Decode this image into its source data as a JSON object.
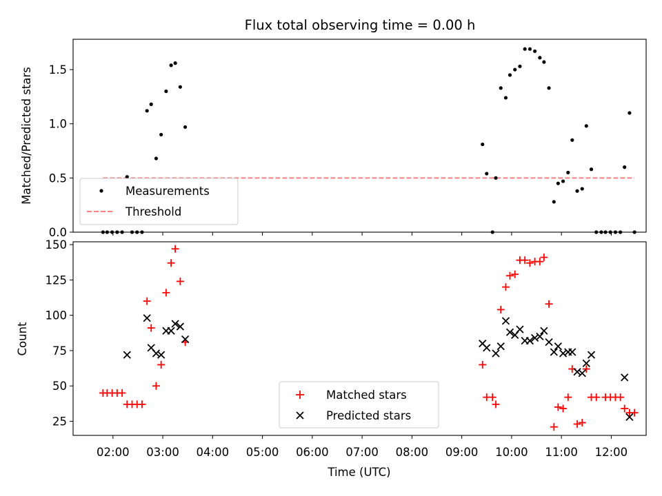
{
  "chart_data": [
    {
      "type": "scatter",
      "title": "Flux total observing time = 0.00 h",
      "xlabel": "",
      "ylabel": "Matched/Predicted stars",
      "xlim": [
        "01:12",
        "12:42"
      ],
      "ylim": [
        0,
        1.78
      ],
      "yticks": [
        0.0,
        0.5,
        1.0,
        1.5
      ],
      "ytick_labels": [
        "0.0",
        "0.5",
        "1.0",
        "1.5"
      ],
      "legend": {
        "position": "lower-left",
        "entries": [
          "Measurements",
          "Threshold"
        ]
      },
      "series": [
        {
          "name": "Measurements",
          "marker": "dot",
          "color": "#000000",
          "points": [
            [
              "01:48",
              0.0
            ],
            [
              "01:53",
              0.0
            ],
            [
              "01:59",
              0.0
            ],
            [
              "02:05",
              0.0
            ],
            [
              "02:11",
              0.0
            ],
            [
              "02:17",
              0.51
            ],
            [
              "02:23",
              0.0
            ],
            [
              "02:29",
              0.0
            ],
            [
              "02:35",
              0.0
            ],
            [
              "02:41",
              1.12
            ],
            [
              "02:46",
              1.18
            ],
            [
              "02:52",
              0.68
            ],
            [
              "02:58",
              0.9
            ],
            [
              "03:04",
              1.3
            ],
            [
              "03:10",
              1.54
            ],
            [
              "03:15",
              1.56
            ],
            [
              "03:21",
              1.34
            ],
            [
              "03:27",
              0.97
            ],
            [
              "09:25",
              0.81
            ],
            [
              "09:30",
              0.54
            ],
            [
              "09:37",
              0.0
            ],
            [
              "09:41",
              0.5
            ],
            [
              "09:47",
              1.33
            ],
            [
              "09:53",
              1.24
            ],
            [
              "09:58",
              1.45
            ],
            [
              "10:04",
              1.5
            ],
            [
              "10:10",
              1.53
            ],
            [
              "10:16",
              1.69
            ],
            [
              "10:22",
              1.69
            ],
            [
              "10:28",
              1.67
            ],
            [
              "10:34",
              1.61
            ],
            [
              "10:39",
              1.57
            ],
            [
              "10:45",
              1.33
            ],
            [
              "10:51",
              0.28
            ],
            [
              "10:56",
              0.45
            ],
            [
              "11:02",
              0.47
            ],
            [
              "11:08",
              0.55
            ],
            [
              "11:13",
              0.85
            ],
            [
              "11:19",
              0.38
            ],
            [
              "11:25",
              0.4
            ],
            [
              "11:30",
              0.98
            ],
            [
              "11:36",
              0.58
            ],
            [
              "11:42",
              0.0
            ],
            [
              "11:48",
              0.0
            ],
            [
              "11:53",
              0.0
            ],
            [
              "11:59",
              0.0
            ],
            [
              "12:05",
              0.0
            ],
            [
              "12:11",
              0.0
            ],
            [
              "12:16",
              0.6
            ],
            [
              "12:22",
              1.1
            ],
            [
              "12:28",
              0.0
            ]
          ]
        },
        {
          "name": "Threshold",
          "style": "dashed",
          "color": "#ff8080",
          "x": [
            "01:48",
            "12:28"
          ],
          "y": [
            0.5,
            0.5
          ]
        }
      ]
    },
    {
      "type": "scatter",
      "title": "",
      "xlabel": "Time (UTC)",
      "ylabel": "Count",
      "xlim": [
        "01:12",
        "12:42"
      ],
      "ylim": [
        15,
        152
      ],
      "xticks": [
        "02:00",
        "03:00",
        "04:00",
        "05:00",
        "06:00",
        "07:00",
        "08:00",
        "09:00",
        "10:00",
        "11:00",
        "12:00"
      ],
      "yticks": [
        25,
        50,
        75,
        100,
        125,
        150
      ],
      "ytick_labels": [
        "25",
        "50",
        "75",
        "100",
        "125",
        "150"
      ],
      "legend": {
        "position": "lower-center",
        "entries": [
          "Matched stars",
          "Predicted stars"
        ]
      },
      "series": [
        {
          "name": "Matched stars",
          "marker": "plus",
          "color": "#ff0000",
          "points": [
            [
              "01:48",
              45
            ],
            [
              "01:53",
              45
            ],
            [
              "01:59",
              45
            ],
            [
              "02:05",
              45
            ],
            [
              "02:11",
              45
            ],
            [
              "02:17",
              37
            ],
            [
              "02:23",
              37
            ],
            [
              "02:29",
              37
            ],
            [
              "02:35",
              37
            ],
            [
              "02:41",
              110
            ],
            [
              "02:46",
              91
            ],
            [
              "02:52",
              50
            ],
            [
              "02:58",
              65
            ],
            [
              "03:04",
              116
            ],
            [
              "03:10",
              137
            ],
            [
              "03:15",
              147
            ],
            [
              "03:21",
              124
            ],
            [
              "03:27",
              81
            ],
            [
              "09:25",
              65
            ],
            [
              "09:30",
              42
            ],
            [
              "09:37",
              42
            ],
            [
              "09:41",
              37
            ],
            [
              "09:47",
              104
            ],
            [
              "09:53",
              120
            ],
            [
              "09:58",
              128
            ],
            [
              "10:04",
              129
            ],
            [
              "10:10",
              139
            ],
            [
              "10:16",
              139
            ],
            [
              "10:22",
              137
            ],
            [
              "10:28",
              138
            ],
            [
              "10:34",
              138
            ],
            [
              "10:39",
              141
            ],
            [
              "10:45",
              108
            ],
            [
              "10:51",
              21
            ],
            [
              "10:56",
              35
            ],
            [
              "11:02",
              34
            ],
            [
              "11:08",
              42
            ],
            [
              "11:13",
              62
            ],
            [
              "11:19",
              23
            ],
            [
              "11:25",
              24
            ],
            [
              "11:30",
              62
            ],
            [
              "11:36",
              42
            ],
            [
              "11:42",
              42
            ],
            [
              "11:53",
              42
            ],
            [
              "11:59",
              42
            ],
            [
              "12:05",
              42
            ],
            [
              "12:11",
              42
            ],
            [
              "12:16",
              34
            ],
            [
              "12:22",
              31
            ],
            [
              "12:28",
              31
            ]
          ]
        },
        {
          "name": "Predicted stars",
          "marker": "x",
          "color": "#000000",
          "points": [
            [
              "02:17",
              72
            ],
            [
              "02:41",
              98
            ],
            [
              "02:46",
              77
            ],
            [
              "02:52",
              73
            ],
            [
              "02:58",
              72
            ],
            [
              "03:04",
              89
            ],
            [
              "03:10",
              89
            ],
            [
              "03:15",
              94
            ],
            [
              "03:21",
              92
            ],
            [
              "03:27",
              83
            ],
            [
              "09:25",
              80
            ],
            [
              "09:30",
              77
            ],
            [
              "09:41",
              73
            ],
            [
              "09:47",
              78
            ],
            [
              "09:53",
              96
            ],
            [
              "09:58",
              88
            ],
            [
              "10:04",
              86
            ],
            [
              "10:10",
              90
            ],
            [
              "10:16",
              82
            ],
            [
              "10:22",
              82
            ],
            [
              "10:28",
              84
            ],
            [
              "10:34",
              85
            ],
            [
              "10:39",
              89
            ],
            [
              "10:45",
              81
            ],
            [
              "10:51",
              74
            ],
            [
              "10:56",
              78
            ],
            [
              "11:02",
              73
            ],
            [
              "11:08",
              74
            ],
            [
              "11:13",
              74
            ],
            [
              "11:19",
              60
            ],
            [
              "11:25",
              59
            ],
            [
              "11:30",
              66
            ],
            [
              "11:36",
              72
            ],
            [
              "12:16",
              56
            ],
            [
              "12:22",
              28
            ]
          ]
        }
      ]
    }
  ]
}
